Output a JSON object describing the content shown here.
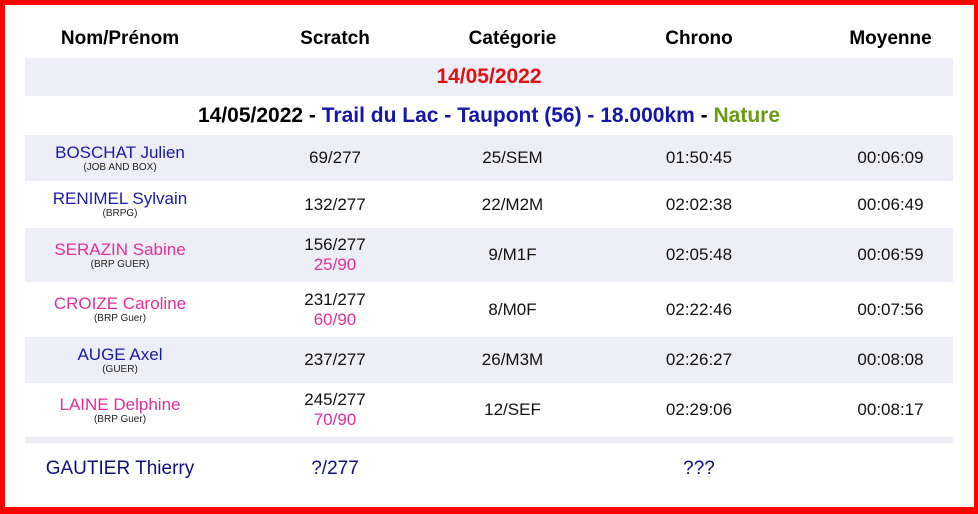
{
  "headers": [
    "Nom/Prénom",
    "Scratch",
    "Catégorie",
    "Chrono",
    "Moyenne"
  ],
  "date_band": "14/05/2022",
  "race": {
    "date": "14/05/2022",
    "sep1": " - ",
    "name": "Trail du Lac - Taupont (56) - 18.000km",
    "sep2": " - ",
    "type": "Nature"
  },
  "rows": [
    {
      "name": "BOSCHAT Julien",
      "club": "(JOB AND BOX)",
      "gender": "M",
      "scratch": "69/277",
      "sub": "",
      "cat": "25/SEM",
      "chrono": "01:50:45",
      "moyenne": "00:06:09"
    },
    {
      "name": "RENIMEL Sylvain",
      "club": "(BRPG)",
      "gender": "M",
      "scratch": "132/277",
      "sub": "",
      "cat": "22/M2M",
      "chrono": "02:02:38",
      "moyenne": "00:06:49"
    },
    {
      "name": "SERAZIN Sabine",
      "club": "(BRP GUER)",
      "gender": "F",
      "scratch": "156/277",
      "sub": "25/90",
      "cat": "9/M1F",
      "chrono": "02:05:48",
      "moyenne": "00:06:59"
    },
    {
      "name": "CROIZE Caroline",
      "club": "(BRP Guer)",
      "gender": "F",
      "scratch": "231/277",
      "sub": "60/90",
      "cat": "8/M0F",
      "chrono": "02:22:46",
      "moyenne": "00:07:56"
    },
    {
      "name": "AUGE Axel",
      "club": "(GUER)",
      "gender": "M",
      "scratch": "237/277",
      "sub": "",
      "cat": "26/M3M",
      "chrono": "02:26:27",
      "moyenne": "00:08:08"
    },
    {
      "name": "LAINE Delphine",
      "club": "(BRP Guer)",
      "gender": "F",
      "scratch": "245/277",
      "sub": "70/90",
      "cat": "12/SEF",
      "chrono": "02:29:06",
      "moyenne": "00:08:17"
    }
  ],
  "last": {
    "name": "GAUTIER Thierry",
    "scratch": "?/277",
    "chrono": "???"
  },
  "colors": {
    "border": "#ff0000",
    "band": "#eeeef8",
    "male": "#1a1aa8",
    "female": "#e0309a",
    "date": "#e01010",
    "nature": "#6a9a10"
  }
}
